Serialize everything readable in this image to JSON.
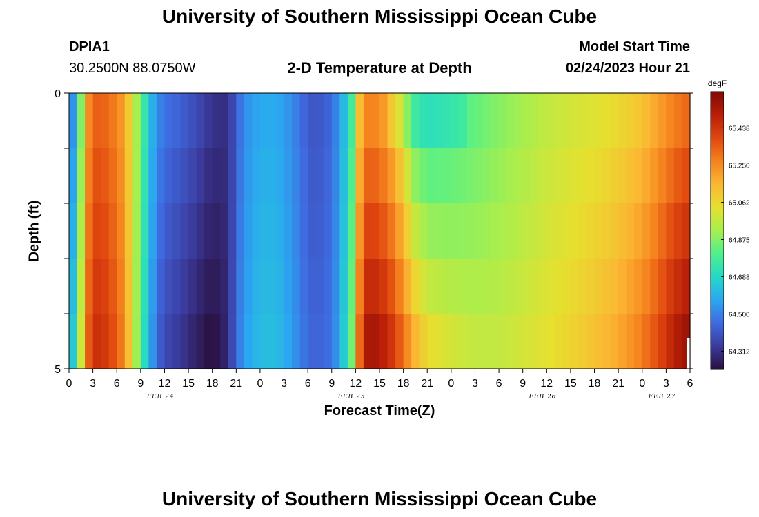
{
  "header": {
    "title": "University of Southern Mississippi Ocean Cube",
    "station_id": "DPIA1",
    "location": "30.2500N  88.0750W",
    "plot_title": "2-D Temperature at Depth",
    "model_start_label": "Model Start Time",
    "model_start_value": "02/24/2023 Hour 21"
  },
  "footer": {
    "title": "University of Southern Mississippi Ocean Cube"
  },
  "colorbar": {
    "unit": "degF",
    "ticks": [
      "65.438",
      "65.250",
      "65.062",
      "64.875",
      "64.688",
      "64.500",
      "64.312"
    ],
    "min": 64.22,
    "max": 65.62,
    "colors": [
      "#2a0f3e",
      "#3b3a9c",
      "#3f6ae0",
      "#2ba7f0",
      "#23d9c8",
      "#4ff08c",
      "#a6ef4e",
      "#e6e02f",
      "#fbb633",
      "#f5821e",
      "#e0470f",
      "#b81e07",
      "#7f0a05"
    ]
  },
  "chart_data": {
    "type": "heatmap",
    "title": "2-D Temperature at Depth",
    "xlabel": "Forecast Time(Z)",
    "ylabel": "Depth (ft)",
    "x_tick_labels": [
      "0",
      "3",
      "6",
      "9",
      "12",
      "15",
      "18",
      "21",
      "0",
      "3",
      "6",
      "9",
      "12",
      "15",
      "18",
      "21",
      "0",
      "3",
      "6",
      "9",
      "12",
      "15",
      "18",
      "21",
      "0",
      "3",
      "6"
    ],
    "date_labels": [
      {
        "label": "FEB 24",
        "at_hour": 11.5
      },
      {
        "label": "FEB 25",
        "at_hour": 35.5
      },
      {
        "label": "FEB 26",
        "at_hour": 59.5
      },
      {
        "label": "FEB 27",
        "at_hour": 74.5
      }
    ],
    "x_range_hours": [
      0,
      78
    ],
    "y_tick_labels": [
      "0",
      "5"
    ],
    "y_range_ft": [
      0,
      5
    ],
    "depth_levels": 5,
    "time_steps": 78,
    "control_hours": [
      0,
      0.6,
      1.2,
      1.8,
      2.5,
      3.5,
      5,
      7,
      8,
      9,
      9.6,
      10.4,
      11,
      12,
      14,
      16,
      17.5,
      19,
      20,
      21,
      22,
      24,
      26,
      28,
      30,
      31,
      33,
      34,
      35.2,
      35.8,
      36.3,
      36.8,
      38,
      40,
      41.5,
      42.5,
      43.5,
      45,
      48,
      51,
      54,
      57,
      60,
      63,
      66,
      69,
      72,
      74,
      76,
      78
    ],
    "control_values_top": [
      64.45,
      64.55,
      64.75,
      65.0,
      65.25,
      65.34,
      65.32,
      65.2,
      65.0,
      64.85,
      64.72,
      64.6,
      64.52,
      64.47,
      64.43,
      64.38,
      64.33,
      64.3,
      64.31,
      64.42,
      64.52,
      64.58,
      64.58,
      64.52,
      64.42,
      64.4,
      64.45,
      64.55,
      64.7,
      64.85,
      65.05,
      65.25,
      65.28,
      65.2,
      65.05,
      64.92,
      64.8,
      64.75,
      64.78,
      64.83,
      64.88,
      64.92,
      64.97,
      65.0,
      65.02,
      65.06,
      65.12,
      65.2,
      65.28,
      65.33
    ],
    "control_values_bottom": [
      64.5,
      64.68,
      64.88,
      65.1,
      65.35,
      65.45,
      65.42,
      65.25,
      65.0,
      64.82,
      64.68,
      64.55,
      64.45,
      64.38,
      64.33,
      64.27,
      64.23,
      64.24,
      64.3,
      64.45,
      64.55,
      64.62,
      64.62,
      64.55,
      64.45,
      64.43,
      64.47,
      64.58,
      64.75,
      64.95,
      65.2,
      65.5,
      65.55,
      65.48,
      65.35,
      65.25,
      65.15,
      65.05,
      65.0,
      64.97,
      64.97,
      65.0,
      65.03,
      65.07,
      65.12,
      65.18,
      65.28,
      65.38,
      65.5,
      65.57
    ]
  }
}
